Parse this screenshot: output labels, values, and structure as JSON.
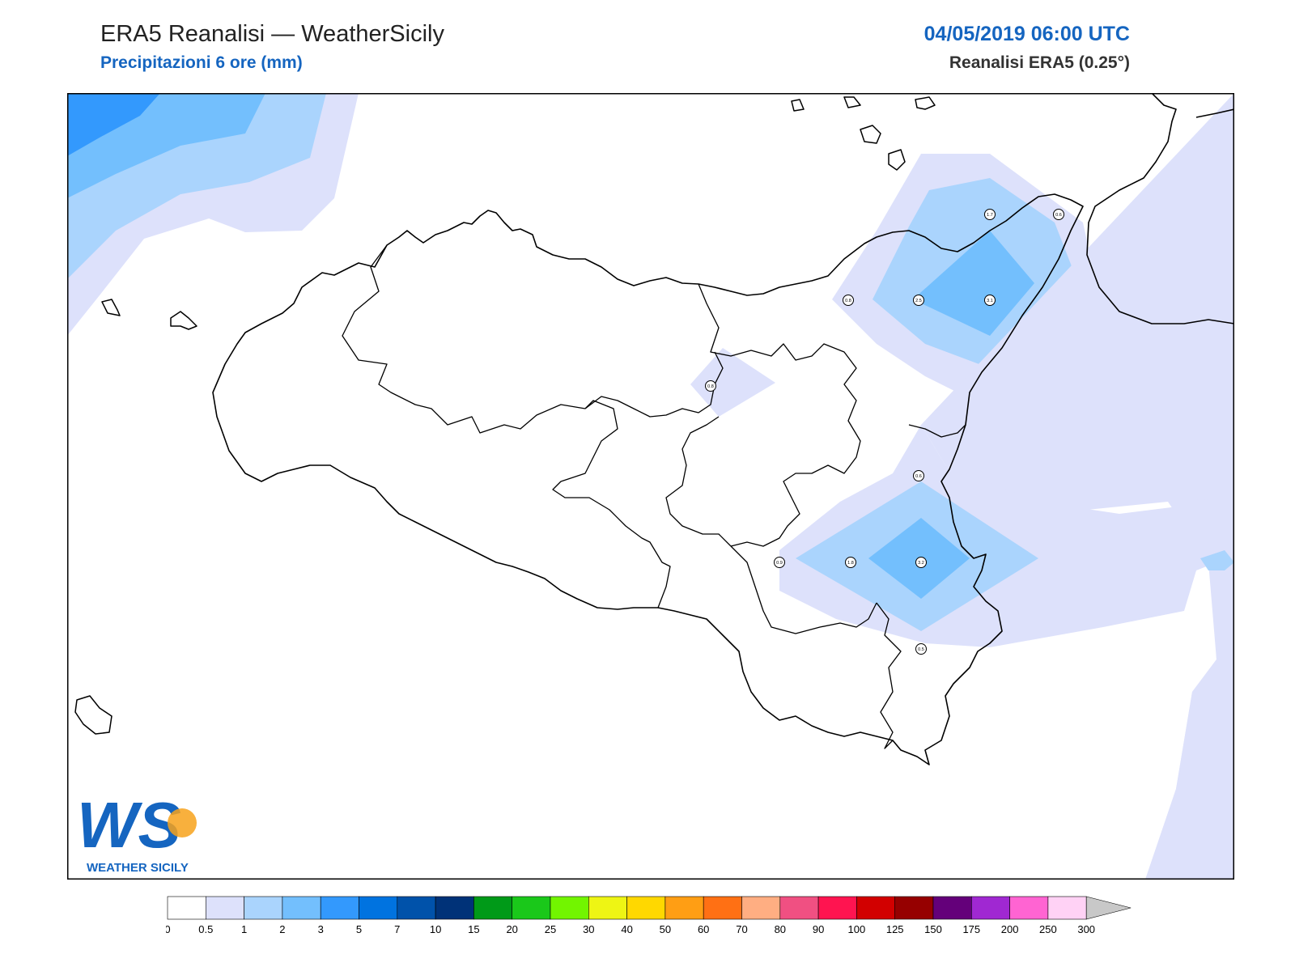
{
  "header": {
    "title": "ERA5 Reanalisi — WeatherSicily",
    "subtitle": "Precipitazioni 6 ore (mm)",
    "datetime": "04/05/2019 06:00 UTC",
    "model": "Reanalisi ERA5 (0.25°)"
  },
  "map": {
    "region": "Sicilia",
    "variable": "total precipitation, 6h accumulation",
    "point_values": [
      "1.7",
      "0.6",
      "0.8",
      "2.5",
      "3.1",
      "0.8",
      "0.6",
      "0.9",
      "1.8",
      "3.2",
      "0.5"
    ]
  },
  "colorbar": {
    "ticks": [
      "0",
      "0.5",
      "1",
      "2",
      "3",
      "5",
      "7",
      "10",
      "15",
      "20",
      "25",
      "30",
      "40",
      "50",
      "60",
      "70",
      "80",
      "90",
      "100",
      "125",
      "150",
      "175",
      "200",
      "250",
      "300"
    ],
    "colors": [
      "#ffffff",
      "#dde1fb",
      "#aad4fd",
      "#73bffd",
      "#3399fd",
      "#0073e0",
      "#0052aa",
      "#003278",
      "#009a18",
      "#1ac81a",
      "#72f500",
      "#eef514",
      "#ffd800",
      "#ff9e14",
      "#ff7014",
      "#ffae82",
      "#f05082",
      "#ff1450",
      "#d20000",
      "#960000",
      "#64007a",
      "#a028d2",
      "#ff64d2",
      "#ffd2f5"
    ],
    "extend_color": "#c8c8c8"
  },
  "logo": {
    "letters": "WS",
    "name": "WEATHER SICILY"
  }
}
